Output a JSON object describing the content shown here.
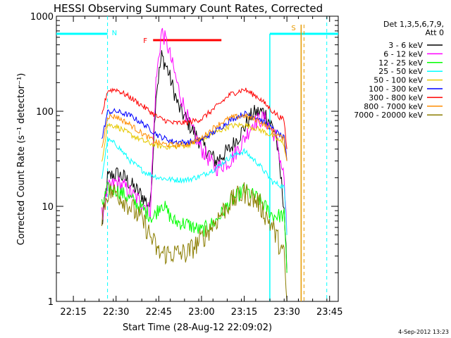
{
  "chart_data": {
    "type": "line",
    "title": "HESSI Observing Summary Count Rates, Corrected",
    "xlabel": "Start Time (28-Aug-12 22:09:02)",
    "ylabel": "Corrected Count Rate (s⁻¹ detector⁻¹)",
    "yscale": "log",
    "ylim": [
      1,
      1000
    ],
    "xlim_minutes": [
      0,
      99
    ],
    "x_ticks": [
      "22:15",
      "22:30",
      "22:45",
      "23:00",
      "23:15",
      "23:30",
      "23:45"
    ],
    "y_ticks": [
      "1",
      "10",
      "100",
      "1000"
    ],
    "legend_header": [
      "Det 1,3,5,6,7,9,",
      "Att 0"
    ],
    "legend_position": "right",
    "timestamp": "4-Sep-2012 13:23",
    "annotations": [
      {
        "label": "N",
        "type": "night",
        "color": "#00ffff"
      },
      {
        "label": "S",
        "type": "saa",
        "color": "#e69a00"
      },
      {
        "label": "F",
        "type": "flare",
        "color": "#ff0000",
        "y": 560
      }
    ],
    "series": [
      {
        "name": "3 - 6 keV",
        "color": "#000000",
        "x": [
          "22:25",
          "22:27",
          "22:30",
          "22:33",
          "22:36",
          "22:39",
          "22:42",
          "22:44",
          "22:46",
          "22:48",
          "22:52",
          "22:56",
          "23:00",
          "23:05",
          "23:10",
          "23:14",
          "23:18",
          "23:22",
          "23:26",
          "23:29",
          "23:30"
        ],
        "y": [
          6,
          20,
          22,
          20,
          16,
          13,
          10,
          150,
          380,
          280,
          110,
          70,
          45,
          30,
          40,
          60,
          95,
          100,
          60,
          10,
          2
        ]
      },
      {
        "name": "6 - 12 keV",
        "color": "#ff00ff",
        "x": [
          "22:25",
          "22:27",
          "22:30",
          "22:33",
          "22:36",
          "22:39",
          "22:42",
          "22:44",
          "22:46",
          "22:48",
          "22:52",
          "22:56",
          "23:00",
          "23:05",
          "23:10",
          "23:14",
          "23:18",
          "23:22",
          "23:26",
          "23:29",
          "23:30"
        ],
        "y": [
          8,
          15,
          18,
          16,
          13,
          11,
          9,
          200,
          700,
          500,
          170,
          70,
          40,
          25,
          30,
          45,
          75,
          85,
          55,
          20,
          5
        ]
      },
      {
        "name": "12 - 25 keV",
        "color": "#00ff00",
        "x": [
          "22:25",
          "22:27",
          "22:30",
          "22:35",
          "22:40",
          "22:43",
          "22:46",
          "22:50",
          "22:55",
          "23:00",
          "23:05",
          "23:10",
          "23:15",
          "23:20",
          "23:25",
          "23:29",
          "23:30"
        ],
        "y": [
          10,
          15,
          15,
          12,
          9,
          7.5,
          11,
          7,
          6.5,
          5.5,
          7,
          11,
          15,
          12,
          8,
          8,
          2
        ]
      },
      {
        "name": "25 - 50 keV",
        "color": "#00ffff",
        "x": [
          "22:25",
          "22:27",
          "22:30",
          "22:35",
          "22:40",
          "22:45",
          "22:50",
          "22:55",
          "23:00",
          "23:05",
          "23:10",
          "23:15",
          "23:20",
          "23:25",
          "23:29",
          "23:30"
        ],
        "y": [
          20,
          50,
          45,
          30,
          23,
          20,
          19,
          19,
          21,
          25,
          33,
          38,
          28,
          18,
          16,
          5
        ]
      },
      {
        "name": "50 - 100 keV",
        "color": "#e6c800",
        "x": [
          "22:25",
          "22:27",
          "22:30",
          "22:35",
          "22:40",
          "22:45",
          "22:50",
          "22:55",
          "23:00",
          "23:05",
          "23:10",
          "23:15",
          "23:20",
          "23:25",
          "23:29",
          "23:30"
        ],
        "y": [
          30,
          72,
          70,
          57,
          48,
          43,
          42,
          44,
          50,
          60,
          70,
          72,
          65,
          55,
          45,
          30
        ]
      },
      {
        "name": "100 - 300 keV",
        "color": "#0000ff",
        "x": [
          "22:25",
          "22:27",
          "22:30",
          "22:35",
          "22:40",
          "22:45",
          "22:50",
          "22:55",
          "23:00",
          "23:05",
          "23:10",
          "23:15",
          "23:20",
          "23:25",
          "23:29",
          "23:30"
        ],
        "y": [
          50,
          98,
          100,
          90,
          72,
          55,
          48,
          47,
          50,
          62,
          80,
          95,
          85,
          65,
          52,
          30
        ]
      },
      {
        "name": "300 - 800 keV",
        "color": "#ff0000",
        "x": [
          "22:25",
          "22:27",
          "22:30",
          "22:35",
          "22:40",
          "22:45",
          "22:50",
          "22:55",
          "23:00",
          "23:05",
          "23:10",
          "23:15",
          "23:20",
          "23:25",
          "23:29",
          "23:30"
        ],
        "y": [
          90,
          165,
          170,
          140,
          110,
          85,
          75,
          76,
          83,
          110,
          150,
          170,
          140,
          100,
          80,
          40
        ]
      },
      {
        "name": "800 - 7000 keV",
        "color": "#ff8c00",
        "x": [
          "22:25",
          "22:27",
          "22:30",
          "22:35",
          "22:40",
          "22:45",
          "22:50",
          "22:55",
          "23:00",
          "23:05",
          "23:10",
          "23:15",
          "23:20",
          "23:25",
          "23:29",
          "23:30"
        ],
        "y": [
          40,
          88,
          88,
          72,
          56,
          46,
          44,
          45,
          52,
          70,
          85,
          90,
          80,
          63,
          50,
          30
        ]
      },
      {
        "name": "7000 - 20000 keV",
        "color": "#8b7d00",
        "x": [
          "22:25",
          "22:27",
          "22:30",
          "22:35",
          "22:40",
          "22:45",
          "22:50",
          "22:55",
          "23:00",
          "23:05",
          "23:10",
          "23:15",
          "23:20",
          "23:25",
          "23:29",
          "23:30"
        ],
        "y": [
          8,
          14,
          14,
          10,
          6.5,
          3.2,
          3.2,
          3.2,
          4.5,
          7,
          11,
          14,
          11,
          6,
          3,
          1
        ]
      }
    ]
  }
}
